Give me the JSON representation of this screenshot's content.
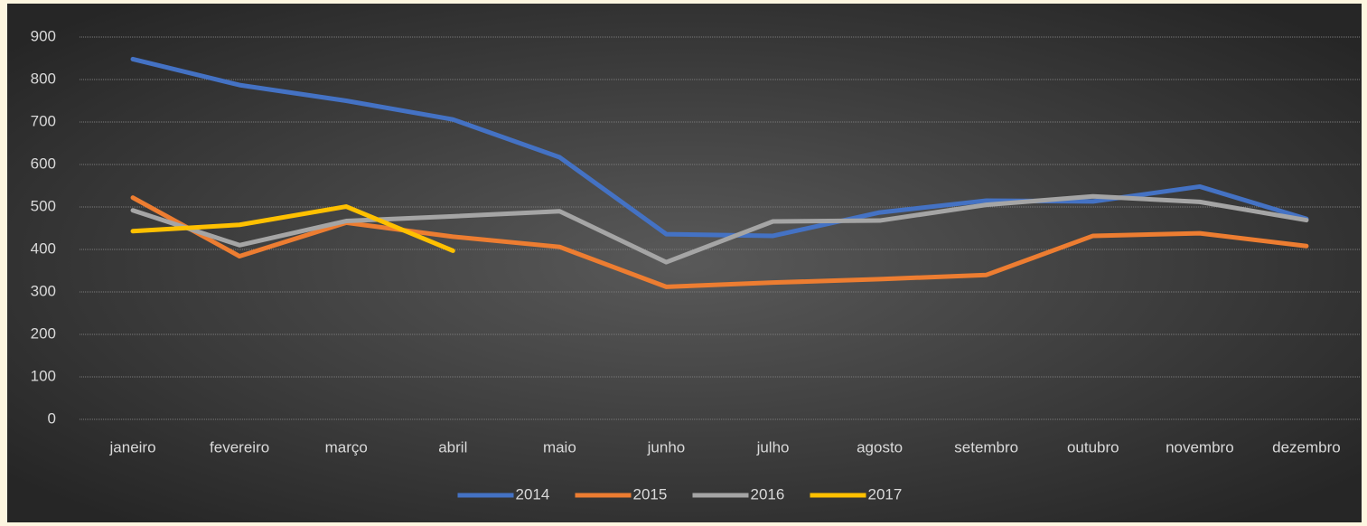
{
  "chart_data": {
    "type": "line",
    "categories": [
      "janeiro",
      "fevereiro",
      "março",
      "abril",
      "maio",
      "junho",
      "julho",
      "agosto",
      "setembro",
      "outubro",
      "novembro",
      "dezembro"
    ],
    "series": [
      {
        "name": "2014",
        "color": "#4472c4",
        "values": [
          848,
          787,
          750,
          706,
          617,
          436,
          432,
          487,
          515,
          513,
          548,
          472
        ]
      },
      {
        "name": "2015",
        "color": "#ed7d31",
        "values": [
          522,
          384,
          463,
          430,
          406,
          312,
          322,
          330,
          340,
          432,
          438,
          408
        ]
      },
      {
        "name": "2016",
        "color": "#a5a5a5",
        "values": [
          492,
          410,
          467,
          478,
          490,
          370,
          466,
          468,
          505,
          525,
          512,
          469
        ]
      },
      {
        "name": "2017",
        "color": "#ffc000",
        "values": [
          443,
          458,
          501,
          397,
          null,
          null,
          null,
          null,
          null,
          null,
          null,
          null
        ]
      }
    ],
    "ylim": [
      0,
      900
    ],
    "yticks": [
      0,
      100,
      200,
      300,
      400,
      500,
      600,
      700,
      800,
      900
    ],
    "grid": true,
    "legend": "bottom"
  }
}
